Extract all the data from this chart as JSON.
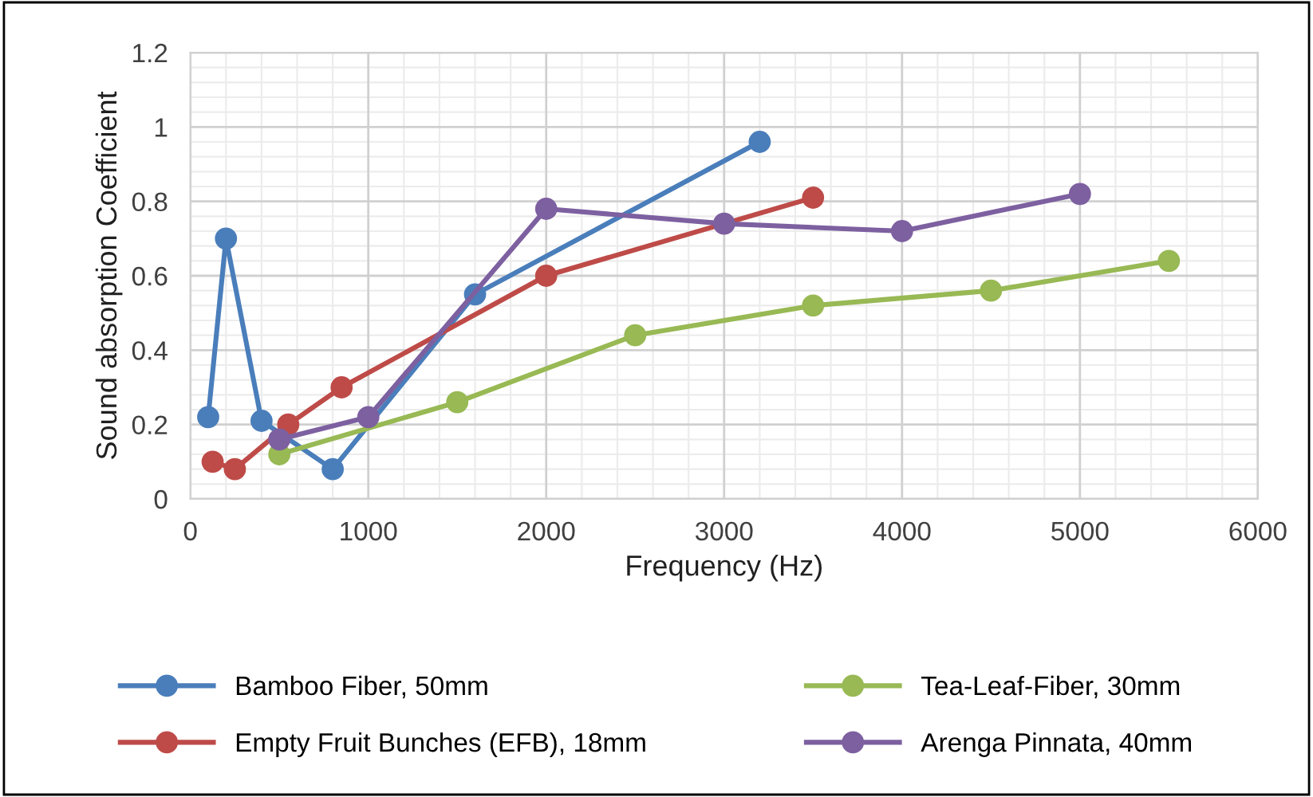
{
  "chart_data": {
    "type": "line",
    "xlabel": "Frequency (Hz)",
    "ylabel": "Sound absorption Coefficient",
    "xlim": [
      0,
      6000
    ],
    "xticks": [
      0,
      1000,
      2000,
      3000,
      4000,
      5000,
      6000
    ],
    "ylim": [
      0,
      1.2
    ],
    "yticks": [
      0,
      0.2,
      0.4,
      0.6,
      0.8,
      1,
      1.2
    ],
    "grid": true,
    "legend": "bottom",
    "marker": "circle",
    "line_style": "solid",
    "series": [
      {
        "name": "Bamboo Fiber, 50mm",
        "color": "#4a7ebb",
        "x": [
          100,
          200,
          400,
          800,
          1600,
          3200
        ],
        "values": [
          0.22,
          0.7,
          0.21,
          0.08,
          0.55,
          0.96
        ]
      },
      {
        "name": "Empty Fruit Bunches (EFB), 18mm",
        "color": "#be4b48",
        "x": [
          125,
          250,
          550,
          850,
          2000,
          3500
        ],
        "values": [
          0.1,
          0.08,
          0.2,
          0.3,
          0.6,
          0.81
        ]
      },
      {
        "name": "Tea-Leaf-Fiber, 30mm",
        "color": "#98b954",
        "x": [
          500,
          1500,
          2500,
          3500,
          4500,
          5500
        ],
        "values": [
          0.12,
          0.26,
          0.44,
          0.52,
          0.56,
          0.64
        ]
      },
      {
        "name": "Arenga Pinnata, 40mm",
        "color": "#7d60a0",
        "x": [
          500,
          1000,
          2000,
          3000,
          4000,
          5000
        ],
        "values": [
          0.16,
          0.22,
          0.78,
          0.74,
          0.72,
          0.82
        ]
      }
    ]
  }
}
